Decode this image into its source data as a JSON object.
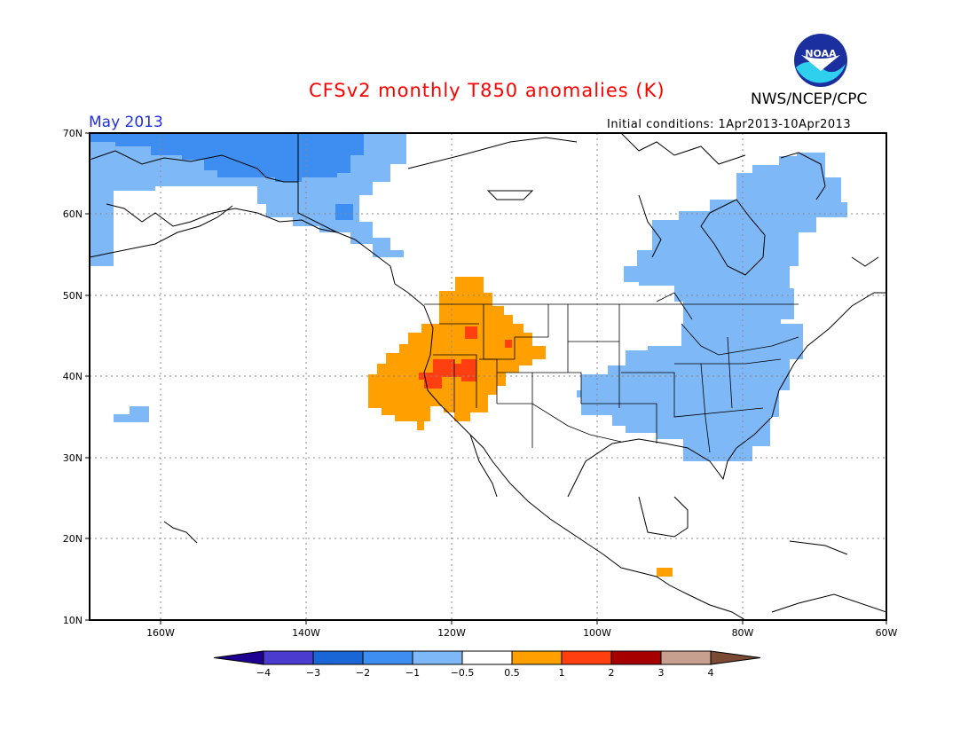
{
  "header": {
    "title": "CFSv2 monthly T850 anomalies (K)",
    "month": "May 2013",
    "initial_conditions": "Initial conditions: 1Apr2013-10Apr2013",
    "agency": "NWS/NCEP/CPC",
    "logo_text": "NOAA"
  },
  "map": {
    "lon_range": [
      -172,
      -60
    ],
    "lat_range": [
      10,
      70
    ],
    "lat_ticks": [
      "70N",
      "60N",
      "50N",
      "40N",
      "30N",
      "20N",
      "10N"
    ],
    "lon_ticks": [
      "160W",
      "140W",
      "120W",
      "100W",
      "80W",
      "60W"
    ],
    "grid": "dotted"
  },
  "colorbar": {
    "labels": [
      "-4",
      "-3",
      "-2",
      "-1",
      "-0.5",
      "0.5",
      "1",
      "2",
      "3",
      "4"
    ],
    "colors": [
      "#1e0090",
      "#4b3ccf",
      "#1a66d6",
      "#3d8ef0",
      "#7fb8f7",
      "#ffffff",
      "#ff9f00",
      "#ff3f10",
      "#a60000",
      "#c8a090",
      "#7a4a35"
    ]
  },
  "anomaly_regions": [
    {
      "name": "alaska-cool",
      "level": "-1 to -0.5"
    },
    {
      "name": "northern-alaska-cold",
      "level": "-2 to -1"
    },
    {
      "name": "eastern-canada-cool",
      "level": "-1 to -0.5"
    },
    {
      "name": "eastern-us-cool",
      "level": "-1 to -0.5"
    },
    {
      "name": "western-us-warm",
      "level": "0.5 to 1"
    },
    {
      "name": "nevada-warm-core",
      "level": "1 to 2"
    }
  ]
}
